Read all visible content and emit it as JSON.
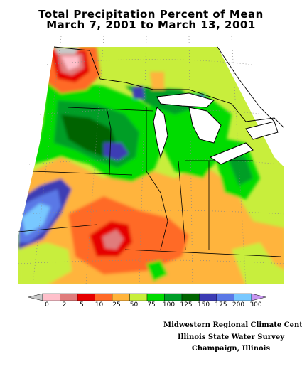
{
  "title": {
    "line1": "Total Precipitation Percent of Mean",
    "line2": "March 7, 2001 to March 13, 2001"
  },
  "legend": {
    "thresholds": [
      "0",
      "2",
      "5",
      "10",
      "25",
      "50",
      "75",
      "100",
      "125",
      "150",
      "175",
      "200",
      "300"
    ],
    "colors": [
      "#c8c8c8",
      "#ffc0cb",
      "#e07c7c",
      "#e60000",
      "#ff6a28",
      "#ffb43c",
      "#c8ee3c",
      "#00dc00",
      "#009e28",
      "#006400",
      "#3c3cb4",
      "#5a78e6",
      "#78c8ff",
      "#c896f0"
    ]
  },
  "credits": {
    "line1": "Midwestern Regional Climate Center",
    "line2": "Illinois State Water Survey",
    "line3": "Champaign, Illinois"
  }
}
